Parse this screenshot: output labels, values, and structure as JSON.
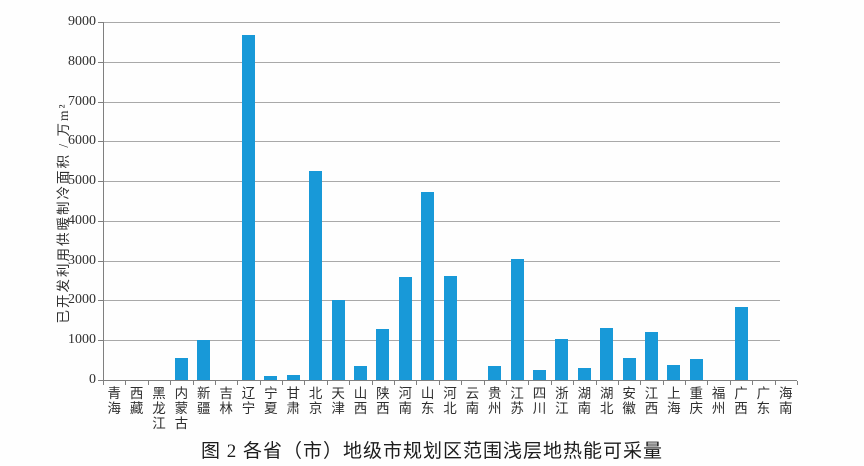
{
  "figure": {
    "caption": "图 2 各省（市）地级市规划区范围浅层地热能可采量"
  },
  "chart_data": {
    "type": "bar",
    "title": "图 2 各省（市）地级市规划区范围浅层地热能可采量",
    "xlabel": "",
    "ylabel": "已开发利用供暖制冷面积 / 万m²",
    "ylim": [
      0,
      9000
    ],
    "ytick_interval": 1000,
    "ytick_labels": [
      "0",
      "1000",
      "2000",
      "3000",
      "4000",
      "5000",
      "6000",
      "7000",
      "8000",
      "9000"
    ],
    "grid": "horizontal-gridlines-on",
    "legend": "none",
    "categories": [
      "青海",
      "西藏",
      "黑龙江",
      "内蒙古",
      "新疆",
      "吉林",
      "辽宁",
      "宁夏",
      "甘肃",
      "北京",
      "天津",
      "山西",
      "陕西",
      "河南",
      "山东",
      "河北",
      "云南",
      "贵州",
      "江苏",
      "四川",
      "浙江",
      "湖南",
      "湖北",
      "安徽",
      "江西",
      "上海",
      "重庆",
      "福州",
      "广西",
      "广东",
      "海南"
    ],
    "values": [
      0,
      0,
      0,
      550,
      1000,
      0,
      8670,
      100,
      120,
      5260,
      2000,
      360,
      1270,
      2580,
      4730,
      2610,
      0,
      360,
      3030,
      250,
      1040,
      300,
      1300,
      550,
      1200,
      370,
      520,
      0,
      1840,
      0,
      0
    ]
  },
  "colors": {
    "bar": "#1899d8",
    "gridline": "#a9a9a9",
    "axis": "#7f7f7f",
    "text": "#2f2f2f",
    "background": "#fefefe"
  }
}
